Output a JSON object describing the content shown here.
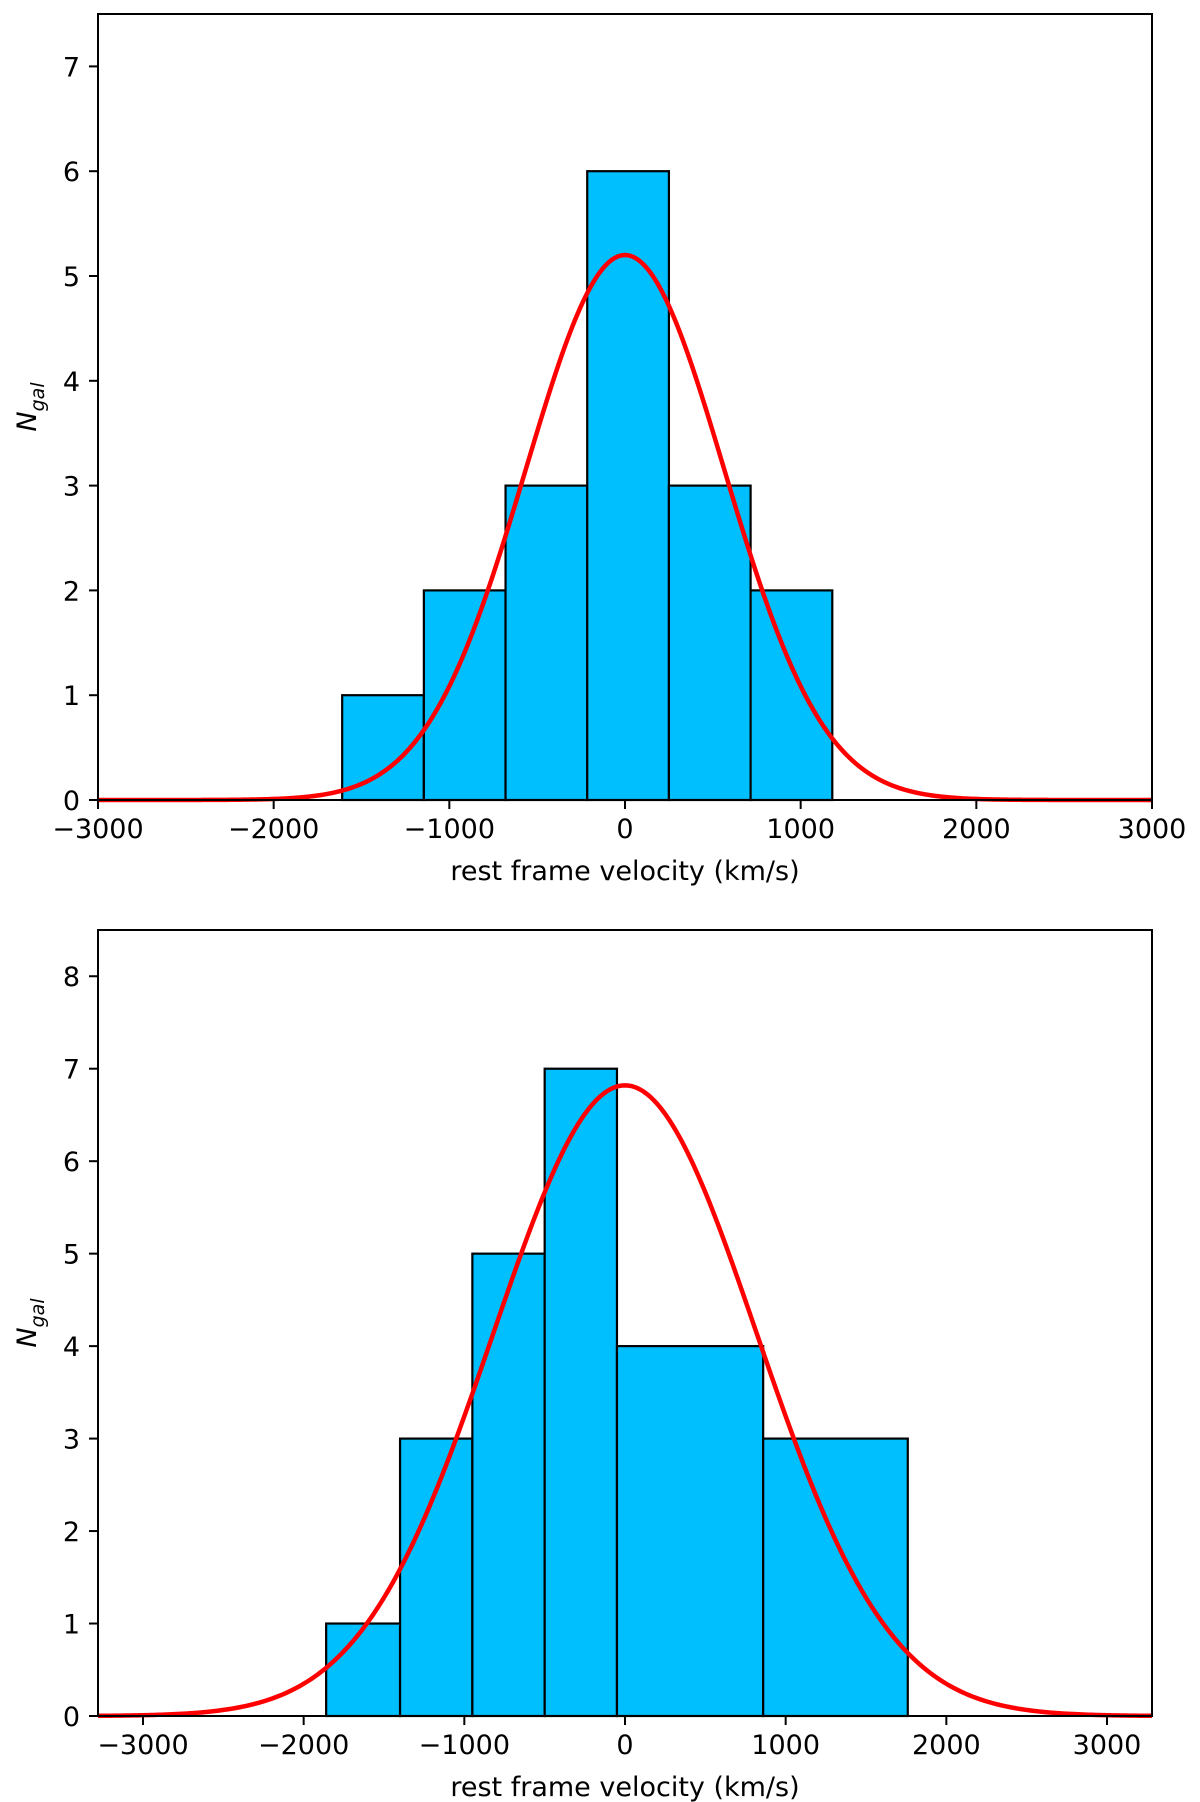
{
  "chart_data": [
    {
      "type": "bar",
      "subtype": "histogram_with_gaussian_fit",
      "title": "",
      "xlabel": "rest frame velocity (km/s)",
      "ylabel": {
        "main": "N",
        "sub": "gal"
      },
      "xlim": [
        -3000,
        3000
      ],
      "ylim": [
        0,
        7.5
      ],
      "xticks": [
        -3000,
        -2000,
        -1000,
        0,
        1000,
        2000,
        3000
      ],
      "xtick_labels": [
        "−3000",
        "−2000",
        "−1000",
        "0",
        "1000",
        "2000",
        "3000"
      ],
      "yticks": [
        0,
        1,
        2,
        3,
        4,
        5,
        6,
        7
      ],
      "ytick_labels": [
        "0",
        "1",
        "2",
        "3",
        "4",
        "5",
        "6",
        "7"
      ],
      "bin_edges": [
        -1610,
        -1145,
        -680,
        -215,
        250,
        715,
        1180
      ],
      "counts": [
        1,
        2,
        3,
        6,
        3,
        2
      ],
      "bar_color": "#00bfff",
      "fit": {
        "type": "gaussian",
        "amplitude": 5.2,
        "mean": 0,
        "sigma": 565,
        "color": "#ff0000"
      }
    },
    {
      "type": "bar",
      "subtype": "histogram_with_gaussian_fit",
      "title": "",
      "xlabel": "rest frame velocity (km/s)",
      "ylabel": {
        "main": "N",
        "sub": "gal"
      },
      "xlim": [
        -3280,
        3280
      ],
      "ylim": [
        0,
        8.5
      ],
      "xticks": [
        -3000,
        -2000,
        -1000,
        0,
        1000,
        2000,
        3000
      ],
      "xtick_labels": [
        "−3000",
        "−2000",
        "−1000",
        "0",
        "1000",
        "2000",
        "3000"
      ],
      "yticks": [
        0,
        1,
        2,
        3,
        4,
        5,
        6,
        7,
        8
      ],
      "ytick_labels": [
        "0",
        "1",
        "2",
        "3",
        "4",
        "5",
        "6",
        "7",
        "8"
      ],
      "bin_edges": [
        -1860,
        -1400,
        -950,
        -500,
        -50,
        860,
        1760
      ],
      "counts": [
        1,
        3,
        5,
        7,
        4,
        3
      ],
      "bar_color": "#00bfff",
      "fit": {
        "type": "gaussian",
        "amplitude": 6.82,
        "mean": 0,
        "sigma": 820,
        "color": "#ff0000"
      }
    }
  ]
}
